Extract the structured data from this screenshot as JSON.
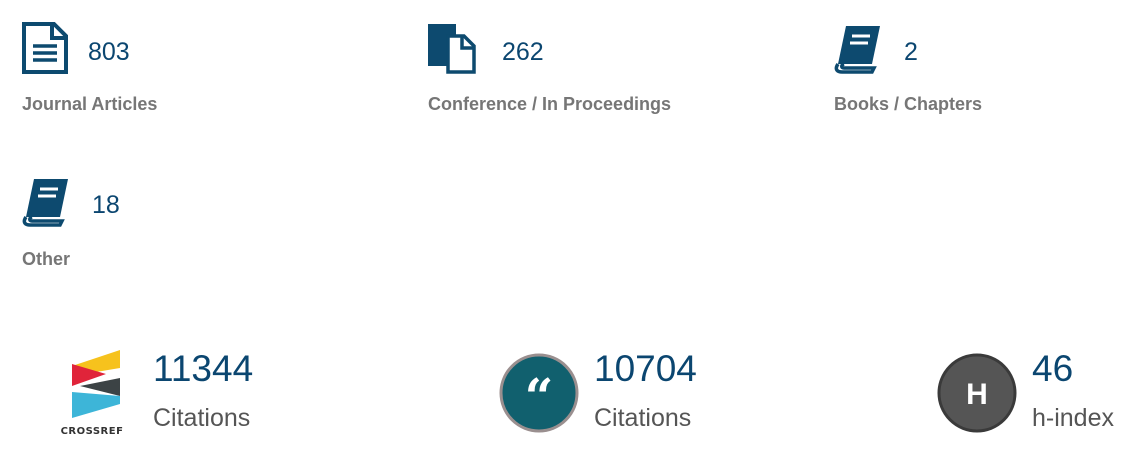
{
  "publications": [
    {
      "icon": "document-icon",
      "count": "803",
      "label": "Journal Articles"
    },
    {
      "icon": "proceedings-icon",
      "count": "262",
      "label": "Conference / In Proceedings"
    },
    {
      "icon": "book-icon",
      "count": "2",
      "label": "Books / Chapters"
    },
    {
      "icon": "book-icon",
      "count": "18",
      "label": "Other"
    }
  ],
  "metrics": [
    {
      "icon": "crossref-logo",
      "logo_text": "CROSSREF",
      "value": "11344",
      "label": "Citations"
    },
    {
      "icon": "quote-icon",
      "value": "10704",
      "label": "Citations"
    },
    {
      "icon": "h-index-icon",
      "icon_text": "H",
      "value": "46",
      "label": "h-index"
    }
  ],
  "colors": {
    "icon": "#0d4a6f",
    "number": "#0b4670",
    "label": "#767676",
    "quote_circle": "#11606e",
    "h_circle": "#555555"
  }
}
